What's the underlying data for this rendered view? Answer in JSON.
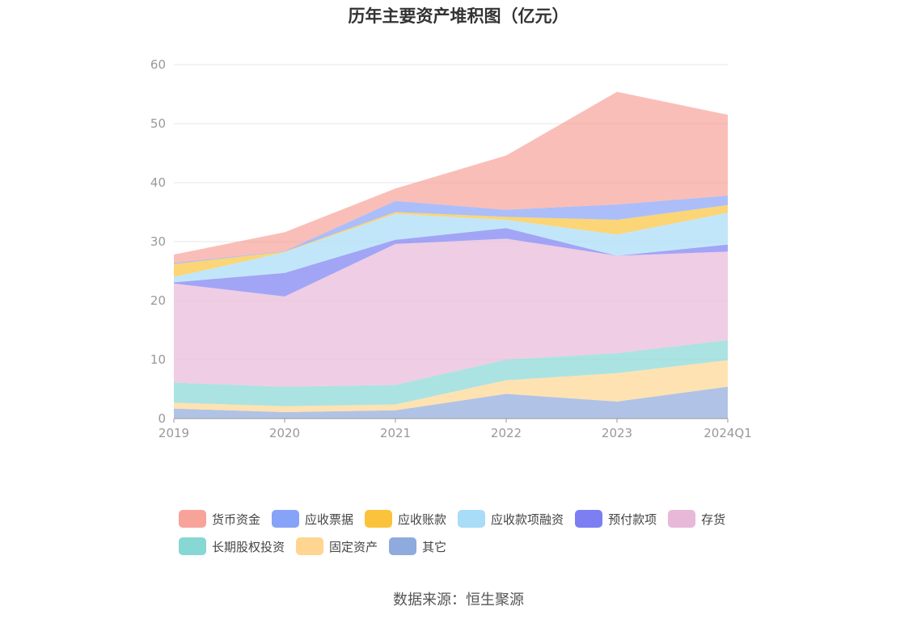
{
  "title": "历年主要资产堆积图（亿元）",
  "source": "数据来源：恒生聚源",
  "chart_data": {
    "type": "area",
    "stacked": true,
    "categories": [
      "2019",
      "2020",
      "2021",
      "2022",
      "2023",
      "2024Q1"
    ],
    "yticks": [
      "0",
      "10",
      "20",
      "30",
      "40",
      "50",
      "60"
    ],
    "ylim": [
      0,
      60
    ],
    "grid": true,
    "legend_position": "bottom",
    "series": [
      {
        "name": "其它",
        "color": "#8faadc",
        "values": [
          1.7,
          1.1,
          1.4,
          4.2,
          2.9,
          5.4
        ]
      },
      {
        "name": "固定资产",
        "color": "#ffd591",
        "values": [
          1.0,
          1.0,
          1.0,
          2.3,
          4.8,
          4.5
        ]
      },
      {
        "name": "长期股权投资",
        "color": "#87d7d5",
        "values": [
          3.4,
          3.3,
          3.3,
          3.5,
          3.4,
          3.4
        ]
      },
      {
        "name": "存货",
        "color": "#e8b8d8",
        "values": [
          16.8,
          15.3,
          23.9,
          20.5,
          16.5,
          15.0
        ]
      },
      {
        "name": "预付款项",
        "color": "#7b7ff2",
        "values": [
          0.2,
          4.0,
          0.7,
          1.8,
          0.0,
          1.2
        ]
      },
      {
        "name": "应收款项融资",
        "color": "#a8dcf7",
        "values": [
          0.9,
          3.5,
          4.4,
          1.4,
          3.6,
          5.4
        ]
      },
      {
        "name": "应收账款",
        "color": "#fbc33c",
        "values": [
          2.2,
          0.1,
          0.3,
          0.5,
          2.5,
          1.3
        ]
      },
      {
        "name": "应收票据",
        "color": "#87a3f7",
        "values": [
          0.2,
          0.1,
          1.9,
          1.2,
          2.6,
          1.6
        ]
      },
      {
        "name": "货币资金",
        "color": "#f8a39a",
        "values": [
          1.4,
          3.2,
          2.1,
          9.2,
          19.1,
          13.7
        ]
      }
    ],
    "legend_order": [
      "货币资金",
      "应收票据",
      "应收账款",
      "应收款项融资",
      "预付款项",
      "存货",
      "长期股权投资",
      "固定资产",
      "其它"
    ]
  }
}
